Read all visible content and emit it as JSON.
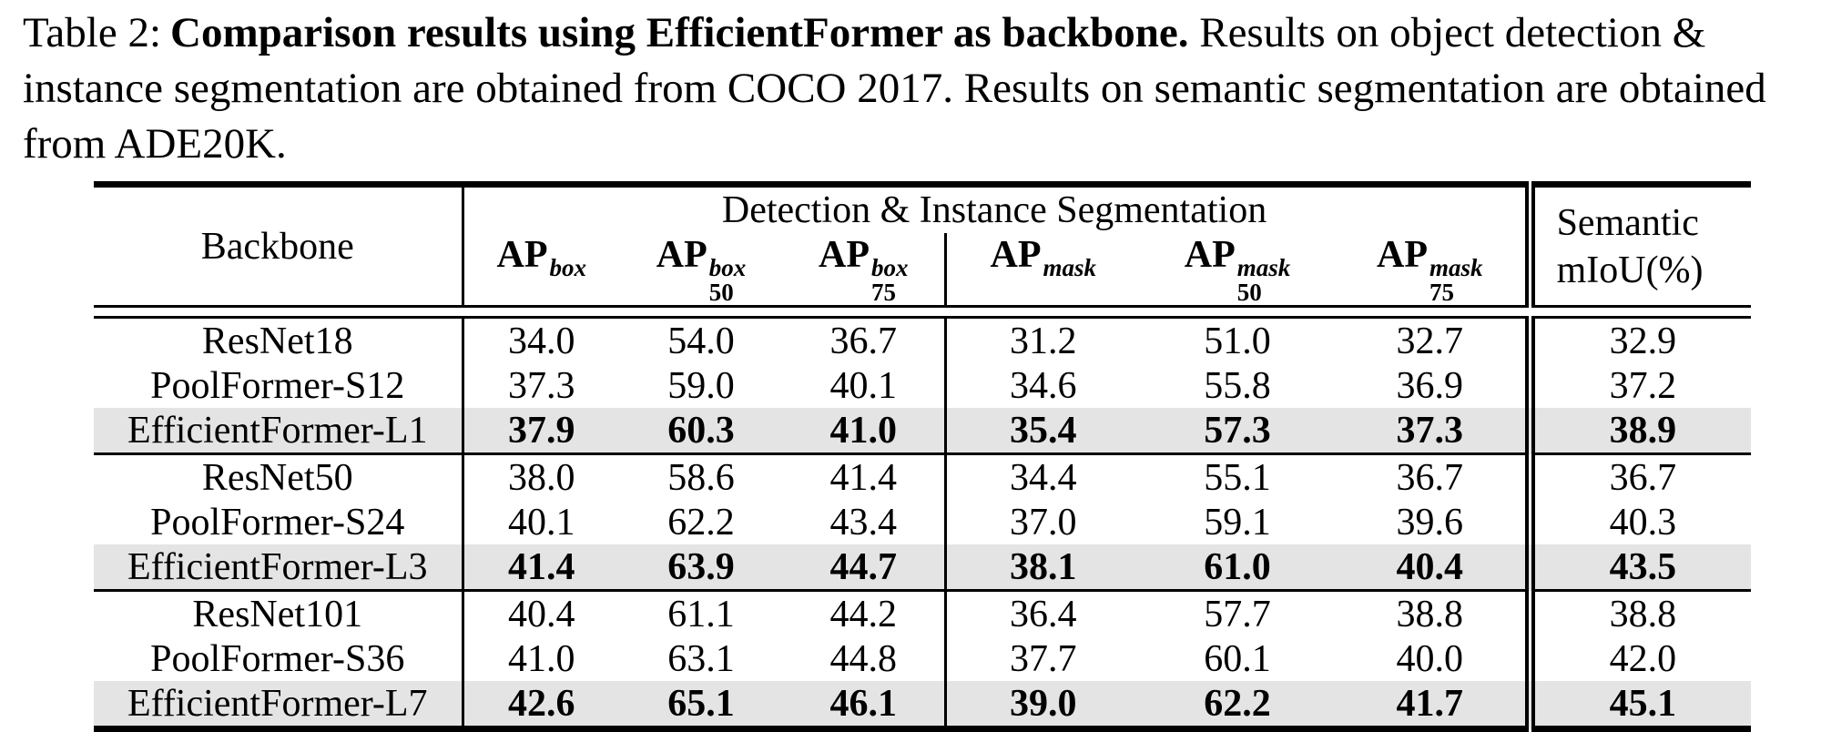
{
  "colors": {
    "highlight_row": "#e4e4e4",
    "text": "#000000",
    "background": "#ffffff"
  },
  "caption": {
    "line1_prefix": "Table 2:",
    "line1_bold": "Comparison results using EfficientFormer as backbone.",
    "line1_rest": " Results on object detection &",
    "line2": "instance segmentation are obtained from COCO 2017. Results on semantic segmentation are obtained",
    "line3": "from ADE20K."
  },
  "table": {
    "header": {
      "backbone": "Backbone",
      "group_detection": "Detection & Instance Segmentation",
      "semantic_line1": "Semantic",
      "semantic_line2": "mIoU(%)",
      "metrics": [
        {
          "main": "AP",
          "sup": "box",
          "sub": ""
        },
        {
          "main": "AP",
          "sup": "box",
          "sub": "50"
        },
        {
          "main": "AP",
          "sup": "box",
          "sub": "75"
        },
        {
          "main": "AP",
          "sup": "mask",
          "sub": ""
        },
        {
          "main": "AP",
          "sup": "mask",
          "sub": "50"
        },
        {
          "main": "AP",
          "sup": "mask",
          "sub": "75"
        }
      ]
    },
    "groups": [
      {
        "rows": [
          {
            "backbone": "ResNet18",
            "values": [
              "34.0",
              "54.0",
              "36.7",
              "31.2",
              "51.0",
              "32.7",
              "32.9"
            ],
            "highlight": false
          },
          {
            "backbone": "PoolFormer-S12",
            "values": [
              "37.3",
              "59.0",
              "40.1",
              "34.6",
              "55.8",
              "36.9",
              "37.2"
            ],
            "highlight": false
          },
          {
            "backbone": "EfficientFormer-L1",
            "values": [
              "37.9",
              "60.3",
              "41.0",
              "35.4",
              "57.3",
              "37.3",
              "38.9"
            ],
            "highlight": true
          }
        ]
      },
      {
        "rows": [
          {
            "backbone": "ResNet50",
            "values": [
              "38.0",
              "58.6",
              "41.4",
              "34.4",
              "55.1",
              "36.7",
              "36.7"
            ],
            "highlight": false
          },
          {
            "backbone": "PoolFormer-S24",
            "values": [
              "40.1",
              "62.2",
              "43.4",
              "37.0",
              "59.1",
              "39.6",
              "40.3"
            ],
            "highlight": false
          },
          {
            "backbone": "EfficientFormer-L3",
            "values": [
              "41.4",
              "63.9",
              "44.7",
              "38.1",
              "61.0",
              "40.4",
              "43.5"
            ],
            "highlight": true
          }
        ]
      },
      {
        "rows": [
          {
            "backbone": "ResNet101",
            "values": [
              "40.4",
              "61.1",
              "44.2",
              "36.4",
              "57.7",
              "38.8",
              "38.8"
            ],
            "highlight": false
          },
          {
            "backbone": "PoolFormer-S36",
            "values": [
              "41.0",
              "63.1",
              "44.8",
              "37.7",
              "60.1",
              "40.0",
              "42.0"
            ],
            "highlight": false
          },
          {
            "backbone": "EfficientFormer-L7",
            "values": [
              "42.6",
              "65.1",
              "46.1",
              "39.0",
              "62.2",
              "41.7",
              "45.1"
            ],
            "highlight": true
          }
        ]
      }
    ]
  }
}
